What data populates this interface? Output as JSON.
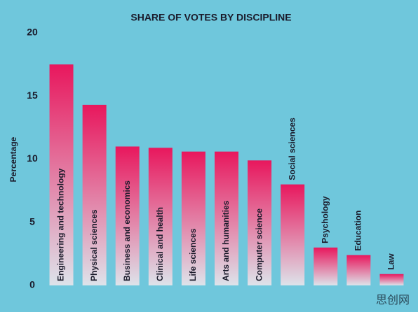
{
  "chart_data": {
    "type": "bar",
    "title": "SHARE OF VOTES BY DISCIPLINE",
    "y_label": "Percentage",
    "categories": [
      "Engineering and technology",
      "Physical sciences",
      "Business and economics",
      "Clinical and health",
      "Life sciences",
      "Arts and humanities",
      "Computer science",
      "Social sciences",
      "Psychology",
      "Education",
      "Law"
    ],
    "values": [
      17.5,
      14.3,
      11.0,
      10.9,
      10.6,
      10.6,
      9.9,
      8.0,
      3.0,
      2.4,
      0.9
    ],
    "color": "#e8175d",
    "ylim": [
      0,
      20
    ],
    "yticks": [
      0,
      5,
      10,
      15,
      20
    ],
    "grid": false,
    "watermark": "思创网"
  }
}
